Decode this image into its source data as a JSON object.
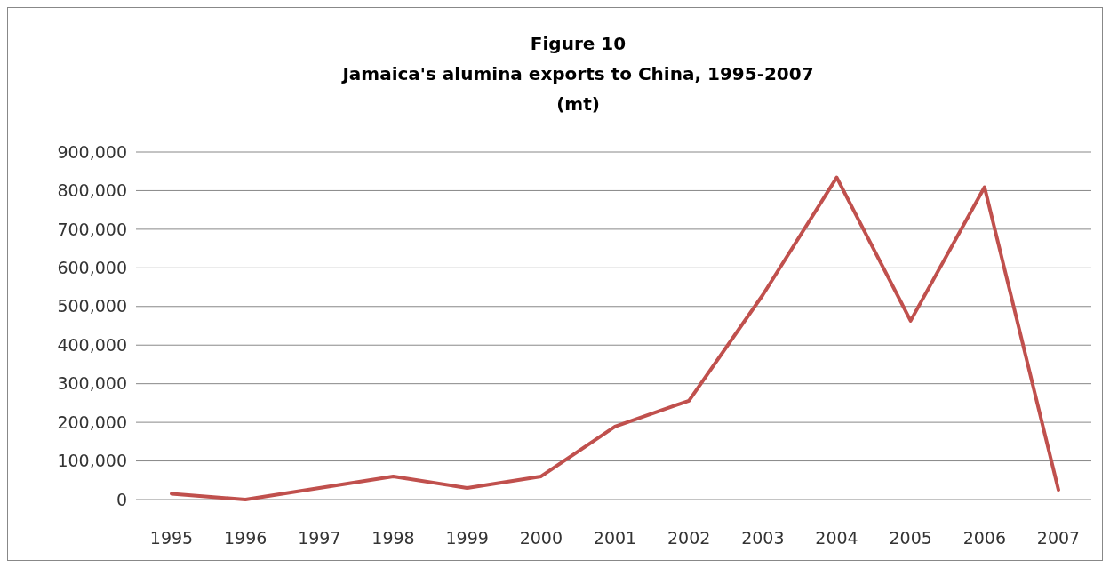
{
  "chart_data": {
    "type": "line",
    "title": "Figure 10",
    "subtitle": "Jamaica's alumina exports to China, 1995-2007\n(mt)",
    "categories": [
      "1995",
      "1996",
      "1997",
      "1998",
      "1999",
      "2000",
      "2001",
      "2002",
      "2003",
      "2004",
      "2005",
      "2006",
      "2007"
    ],
    "series": [
      {
        "color": "#c0504d",
        "values": [
          15000,
          0,
          30000,
          60000,
          30000,
          60000,
          189000,
          256000,
          530000,
          834000,
          463000,
          809000,
          25000
        ]
      }
    ],
    "ylim": [
      0,
      900000
    ],
    "yticks": [
      0,
      {
        "value": 100000,
        "label": "100,000"
      },
      {
        "value": 200000,
        "label": "200,000"
      },
      {
        "value": 300000,
        "label": "300,000"
      },
      {
        "value": 400000,
        "label": "400,000"
      },
      {
        "value": 500000,
        "label": "500,000"
      },
      {
        "value": 600000,
        "label": "600,000"
      },
      {
        "value": 700000,
        "label": "700,000"
      },
      {
        "value": 800000,
        "label": "800,000"
      },
      {
        "value": 900000,
        "label": "900,000"
      }
    ],
    "grid": "y",
    "marker": "none",
    "line_style": "solid"
  }
}
